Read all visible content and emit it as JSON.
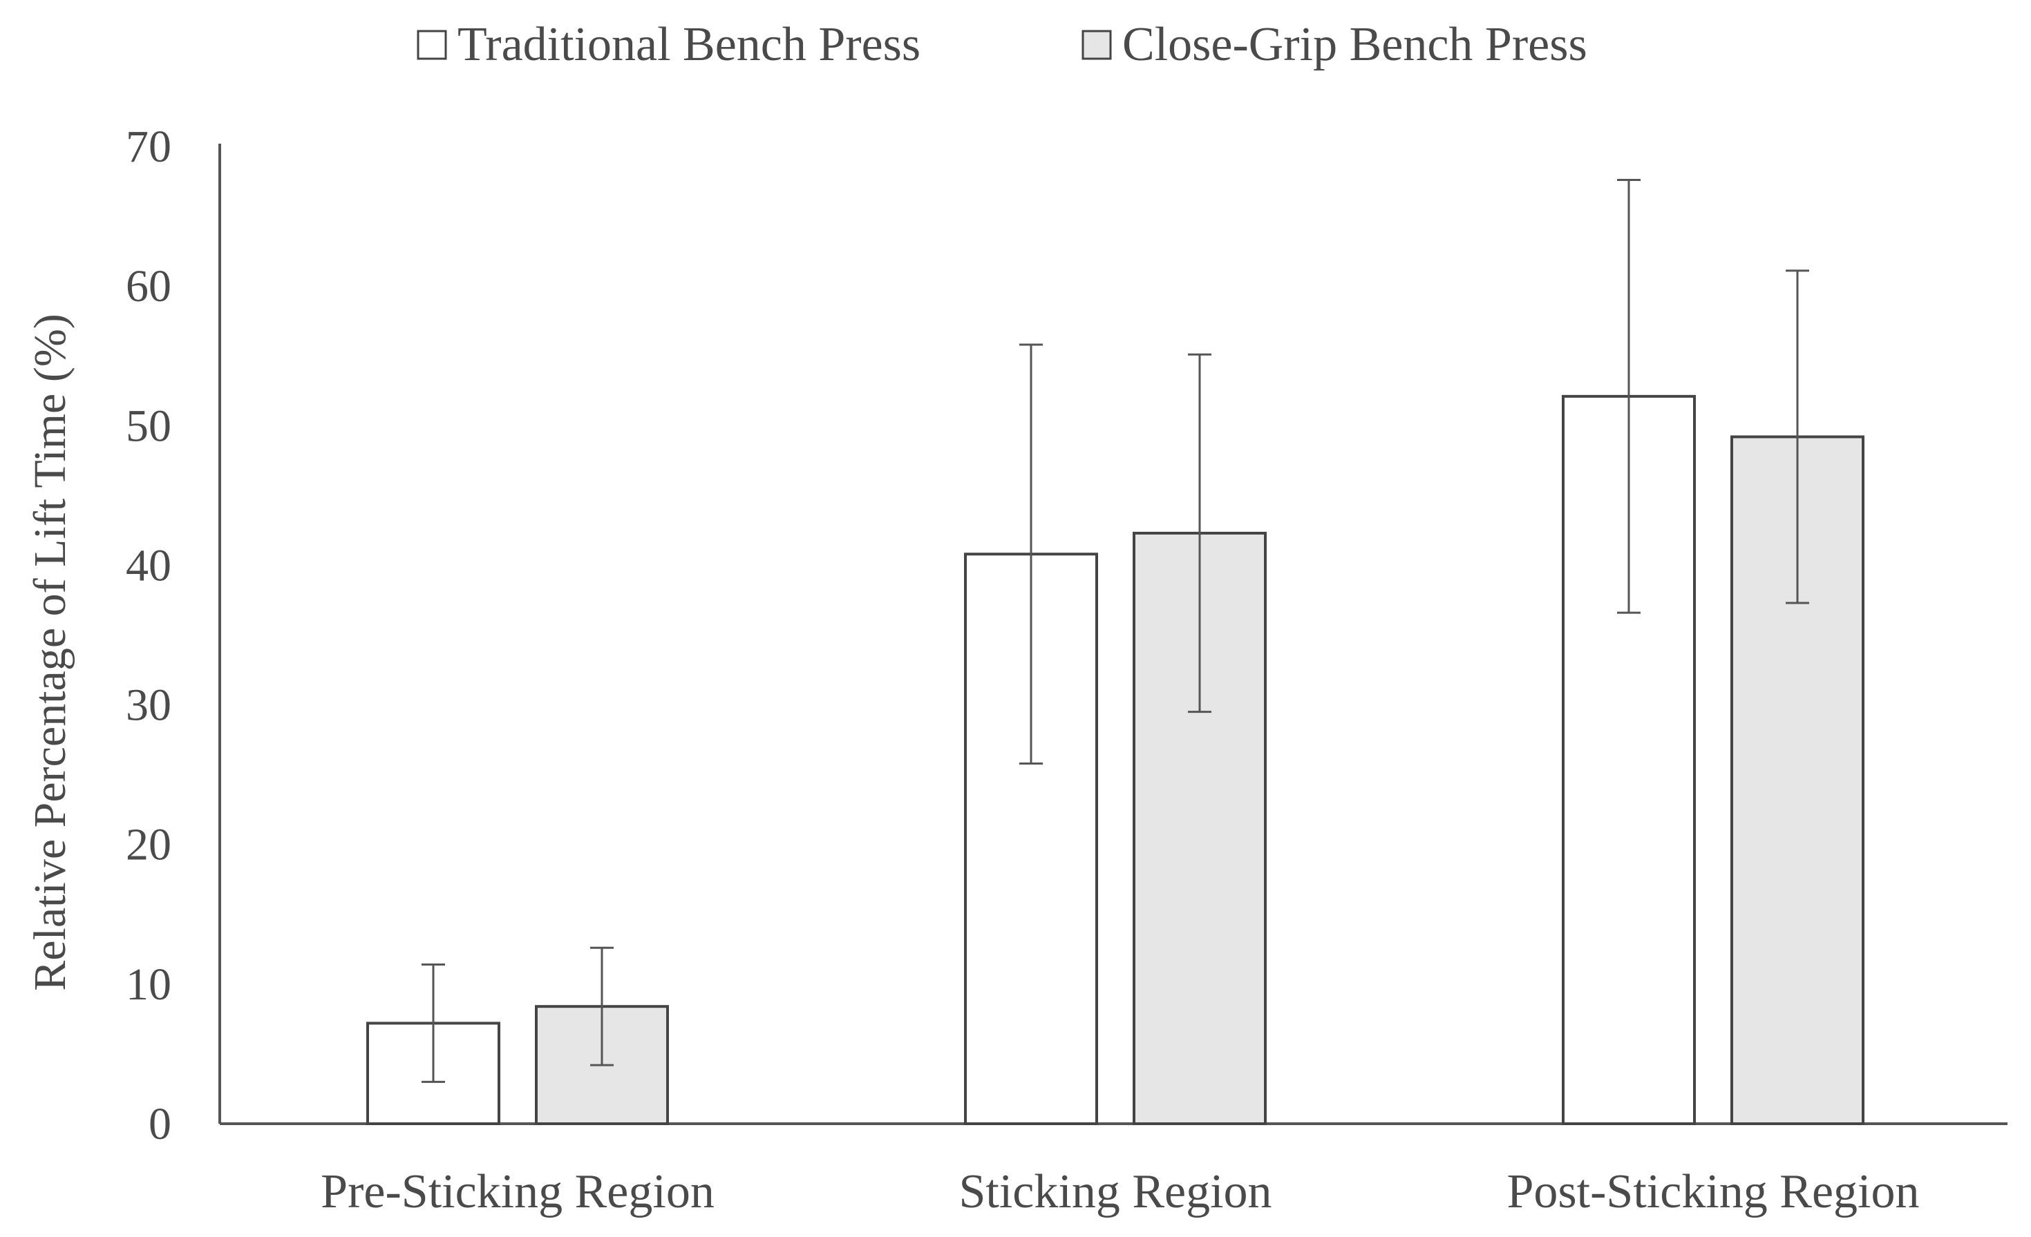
{
  "chart_data": {
    "type": "bar",
    "title": "",
    "ylabel": "Relative Percentage of Lift Time (%)",
    "xlabel": "",
    "ylim": [
      0,
      70
    ],
    "yticks": [
      0,
      10,
      20,
      30,
      40,
      50,
      60,
      70
    ],
    "grid": false,
    "legend_position": "top-center",
    "categories": [
      "Pre-Sticking Region",
      "Sticking Region",
      "Post-Sticking Region"
    ],
    "series": [
      {
        "name": "Traditional Bench Press",
        "color": "#ffffff",
        "values": [
          7.2,
          40.8,
          52.1
        ],
        "error": [
          4.2,
          15.0,
          15.5
        ]
      },
      {
        "name": "Close-Grip Bench Press",
        "color": "#e6e6e6",
        "values": [
          8.4,
          42.3,
          49.2
        ],
        "error": [
          4.2,
          12.8,
          11.9
        ]
      }
    ]
  }
}
